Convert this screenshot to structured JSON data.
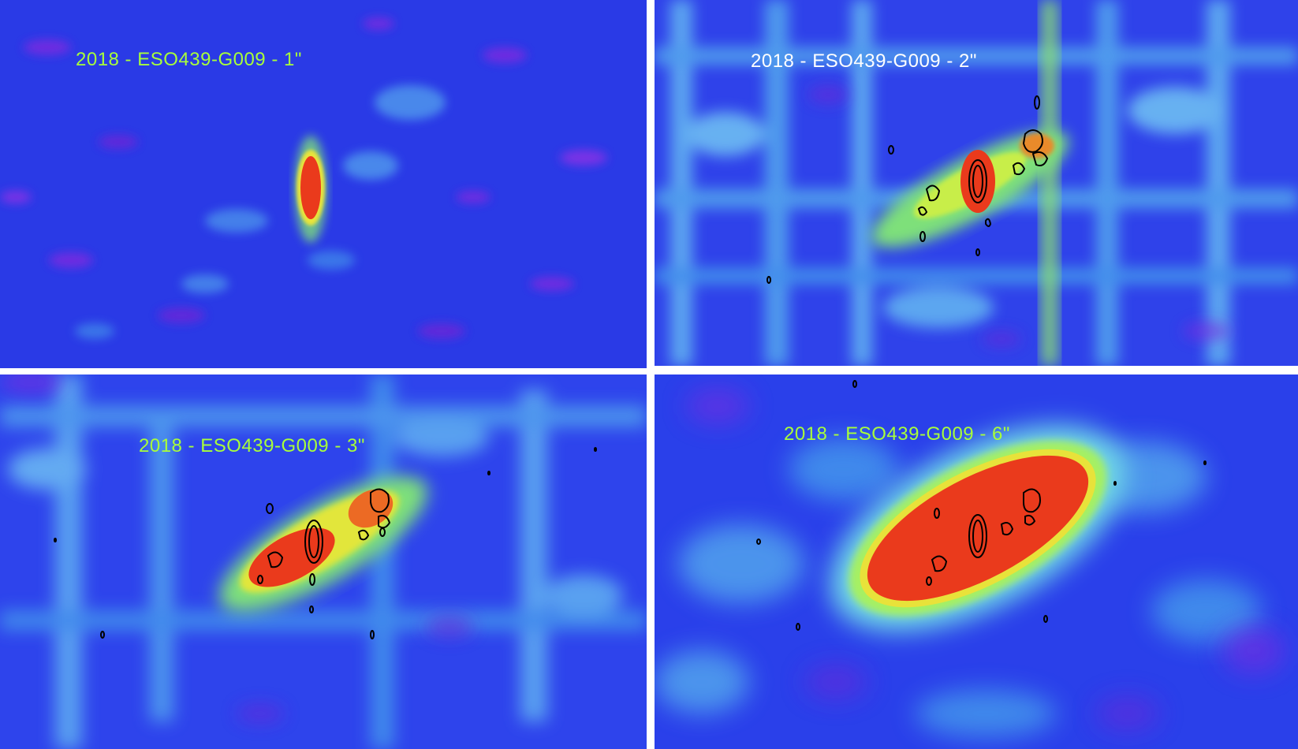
{
  "panels": [
    {
      "label": "2018 - ESO439-G009 - 1\"",
      "label_color": "#a8ff3a"
    },
    {
      "label": "2018 - ESO439-G009 - 2\"",
      "label_color": "#ffffff"
    },
    {
      "label": "2018 - ESO439-G009 - 3\"",
      "label_color": "#a8ff3a"
    },
    {
      "label": "2018 - ESO439-G009 - 6\"",
      "label_color": "#a8ff3a"
    }
  ],
  "colors": {
    "background_blue": "#1f3df0",
    "noise_magenta": "#7a22e0",
    "noise_cyan": "#5fd0f5",
    "emission_green": "#9ef25a",
    "emission_yellow": "#e8e83a",
    "core_red": "#e8341c",
    "contour_black": "#000000"
  }
}
